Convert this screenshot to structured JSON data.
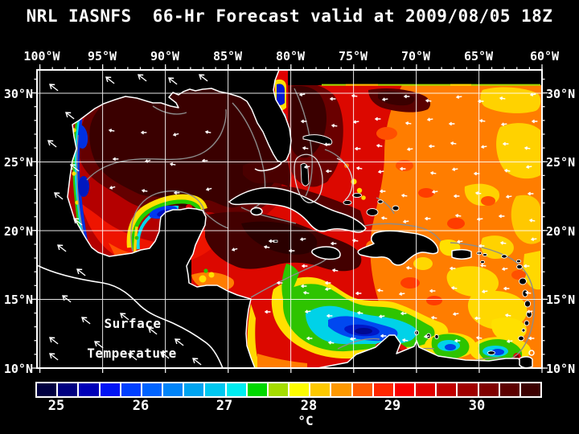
{
  "title": "NRL IASNFS  66-Hr Forecast valid at 2009/08/05 18Z",
  "axes": {
    "lon": [
      "100°W",
      "95°W",
      "90°W",
      "85°W",
      "80°W",
      "75°W",
      "70°W",
      "65°W",
      "60°W"
    ],
    "lat_left": [
      "30°N",
      "25°N",
      "20°N",
      "15°N",
      "10°N"
    ],
    "lat_right": [
      "30°N",
      "25°N",
      "20°N",
      "15°N",
      "10°N"
    ]
  },
  "overlay": {
    "line1": "Surface",
    "line2": "Temperature"
  },
  "colorbar": {
    "unit": "°C",
    "ticks": [
      "25",
      "26",
      "27",
      "28",
      "29",
      "30"
    ],
    "segment_colors": [
      "#000040",
      "#000080",
      "#0000b8",
      "#0014f4",
      "#0040ff",
      "#0064ff",
      "#0084f8",
      "#00a4f0",
      "#00c8f0",
      "#00ecf0",
      "#00d800",
      "#a4dc00",
      "#fcfc00",
      "#fcc800",
      "#fc9800",
      "#ff5a00",
      "#ff2800",
      "#f80000",
      "#e00000",
      "#c00000",
      "#a00000",
      "#800000",
      "#5c0000",
      "#3c0000"
    ]
  },
  "colors": {
    "background": "#000000",
    "frame": "#ffffff",
    "contour": "#8c8c8c"
  }
}
